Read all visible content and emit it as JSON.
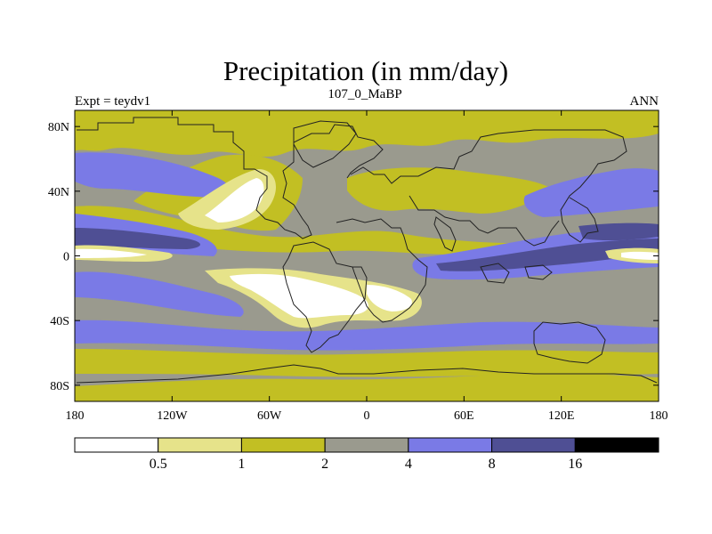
{
  "chart_data": {
    "type": "heatmap",
    "subtype": "global-contour-map",
    "title": "Precipitation (in mm/day)",
    "left_label": "Expt = teydv1",
    "center_label": "107_0_MaBP",
    "right_label": "ANN",
    "x_range": [
      -180,
      180
    ],
    "y_range": [
      -90,
      90
    ],
    "x_ticks": [
      {
        "value": -180,
        "label": "180"
      },
      {
        "value": -120,
        "label": "120W"
      },
      {
        "value": -60,
        "label": "60W"
      },
      {
        "value": 0,
        "label": "0"
      },
      {
        "value": 60,
        "label": "60E"
      },
      {
        "value": 120,
        "label": "120E"
      },
      {
        "value": 180,
        "label": "180"
      }
    ],
    "y_ticks": [
      {
        "value": 80,
        "label": "80N"
      },
      {
        "value": 40,
        "label": "40N"
      },
      {
        "value": 0,
        "label": "0"
      },
      {
        "value": -40,
        "label": "40S"
      },
      {
        "value": -80,
        "label": "80S"
      }
    ],
    "colorbar": {
      "levels": [
        "0.5",
        "1",
        "2",
        "4",
        "8",
        "16"
      ],
      "colors": [
        "#ffffff",
        "#e6e38a",
        "#c2bf23",
        "#9a9a8e",
        "#7a7ae6",
        "#4f4f94",
        "#000000"
      ]
    },
    "legend_position": "bottom",
    "grid": false
  }
}
